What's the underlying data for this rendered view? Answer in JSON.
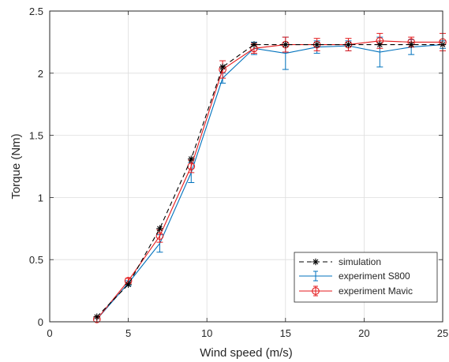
{
  "chart_data": {
    "type": "line",
    "xlabel": "Wind speed (m/s)",
    "ylabel": "Torque (Nm)",
    "xlim": [
      0,
      25
    ],
    "ylim": [
      0,
      2.5
    ],
    "x_ticks": [
      0,
      5,
      10,
      15,
      20,
      25
    ],
    "y_ticks": [
      0,
      0.5,
      1,
      1.5,
      2,
      2.5
    ],
    "x_tick_labels": [
      "0",
      "5",
      "10",
      "15",
      "20",
      "25"
    ],
    "y_tick_labels": [
      "0",
      "0.5",
      "1",
      "1.5",
      "2",
      "2.5"
    ],
    "grid": true,
    "legend_position": "bottom-right",
    "series": [
      {
        "name": "simulation",
        "style": "dashed",
        "marker": "asterisk",
        "color": "#000000",
        "x": [
          3,
          5,
          7,
          9,
          11,
          13,
          15,
          17,
          19,
          21,
          23,
          25
        ],
        "y": [
          0.04,
          0.3,
          0.75,
          1.31,
          2.05,
          2.23,
          2.23,
          2.23,
          2.23,
          2.23,
          2.23,
          2.23
        ]
      },
      {
        "name": "experiment S800",
        "style": "solid",
        "marker": "none",
        "color": "#0072BD",
        "x": [
          3,
          5,
          7,
          9,
          11,
          13,
          15,
          17,
          19,
          21,
          23,
          25
        ],
        "y": [
          0.02,
          0.31,
          0.63,
          1.2,
          1.96,
          2.2,
          2.16,
          2.21,
          2.22,
          2.17,
          2.21,
          2.23
        ],
        "err": [
          0.02,
          0.02,
          0.07,
          0.08,
          0.04,
          0.05,
          0.13,
          0.05,
          0.04,
          0.12,
          0.06,
          0.03
        ]
      },
      {
        "name": "experiment Mavic",
        "style": "solid",
        "marker": "circle",
        "color": "#E41A1C",
        "x": [
          3,
          5,
          7,
          9,
          11,
          13,
          15,
          17,
          19,
          21,
          23,
          25
        ],
        "y": [
          0.02,
          0.33,
          0.69,
          1.25,
          2.03,
          2.2,
          2.23,
          2.23,
          2.23,
          2.26,
          2.25,
          2.25
        ],
        "err": [
          0.02,
          0.02,
          0.05,
          0.05,
          0.07,
          0.04,
          0.06,
          0.05,
          0.05,
          0.06,
          0.04,
          0.07
        ]
      }
    ]
  }
}
